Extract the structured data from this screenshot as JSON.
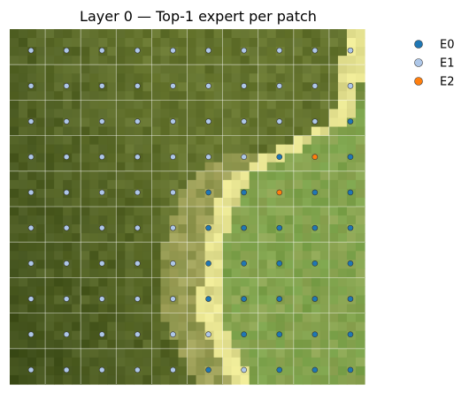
{
  "chart_data": {
    "type": "scatter",
    "title": "Layer 0 — Top-1 expert per patch",
    "grid": true,
    "legend_position": "top-right",
    "grid_size": [
      10,
      10
    ],
    "series": [
      {
        "name": "E0",
        "color": "#1f77b4"
      },
      {
        "name": "E1",
        "color": "#aec7e8"
      },
      {
        "name": "E2",
        "color": "#ff7f0e"
      }
    ],
    "assignments": [
      [
        1,
        1,
        1,
        1,
        1,
        1,
        1,
        1,
        1,
        1
      ],
      [
        1,
        1,
        1,
        1,
        1,
        1,
        1,
        1,
        1,
        1
      ],
      [
        1,
        1,
        1,
        1,
        1,
        1,
        1,
        1,
        1,
        0
      ],
      [
        1,
        1,
        1,
        1,
        1,
        1,
        1,
        0,
        2,
        0
      ],
      [
        1,
        1,
        1,
        1,
        1,
        0,
        0,
        2,
        0,
        0
      ],
      [
        1,
        1,
        1,
        1,
        1,
        0,
        0,
        0,
        0,
        0
      ],
      [
        1,
        1,
        1,
        1,
        1,
        0,
        0,
        0,
        0,
        0
      ],
      [
        1,
        1,
        1,
        1,
        1,
        0,
        0,
        0,
        0,
        0
      ],
      [
        1,
        1,
        1,
        1,
        1,
        1,
        0,
        0,
        0,
        0
      ],
      [
        1,
        1,
        1,
        1,
        1,
        0,
        1,
        0,
        0,
        0
      ]
    ],
    "background_colors": {
      "dark": "#3a4a18",
      "olive": "#6b7a32",
      "tan": "#a8a860",
      "green": "#7aa24a",
      "path": "#f2ee9a"
    }
  }
}
